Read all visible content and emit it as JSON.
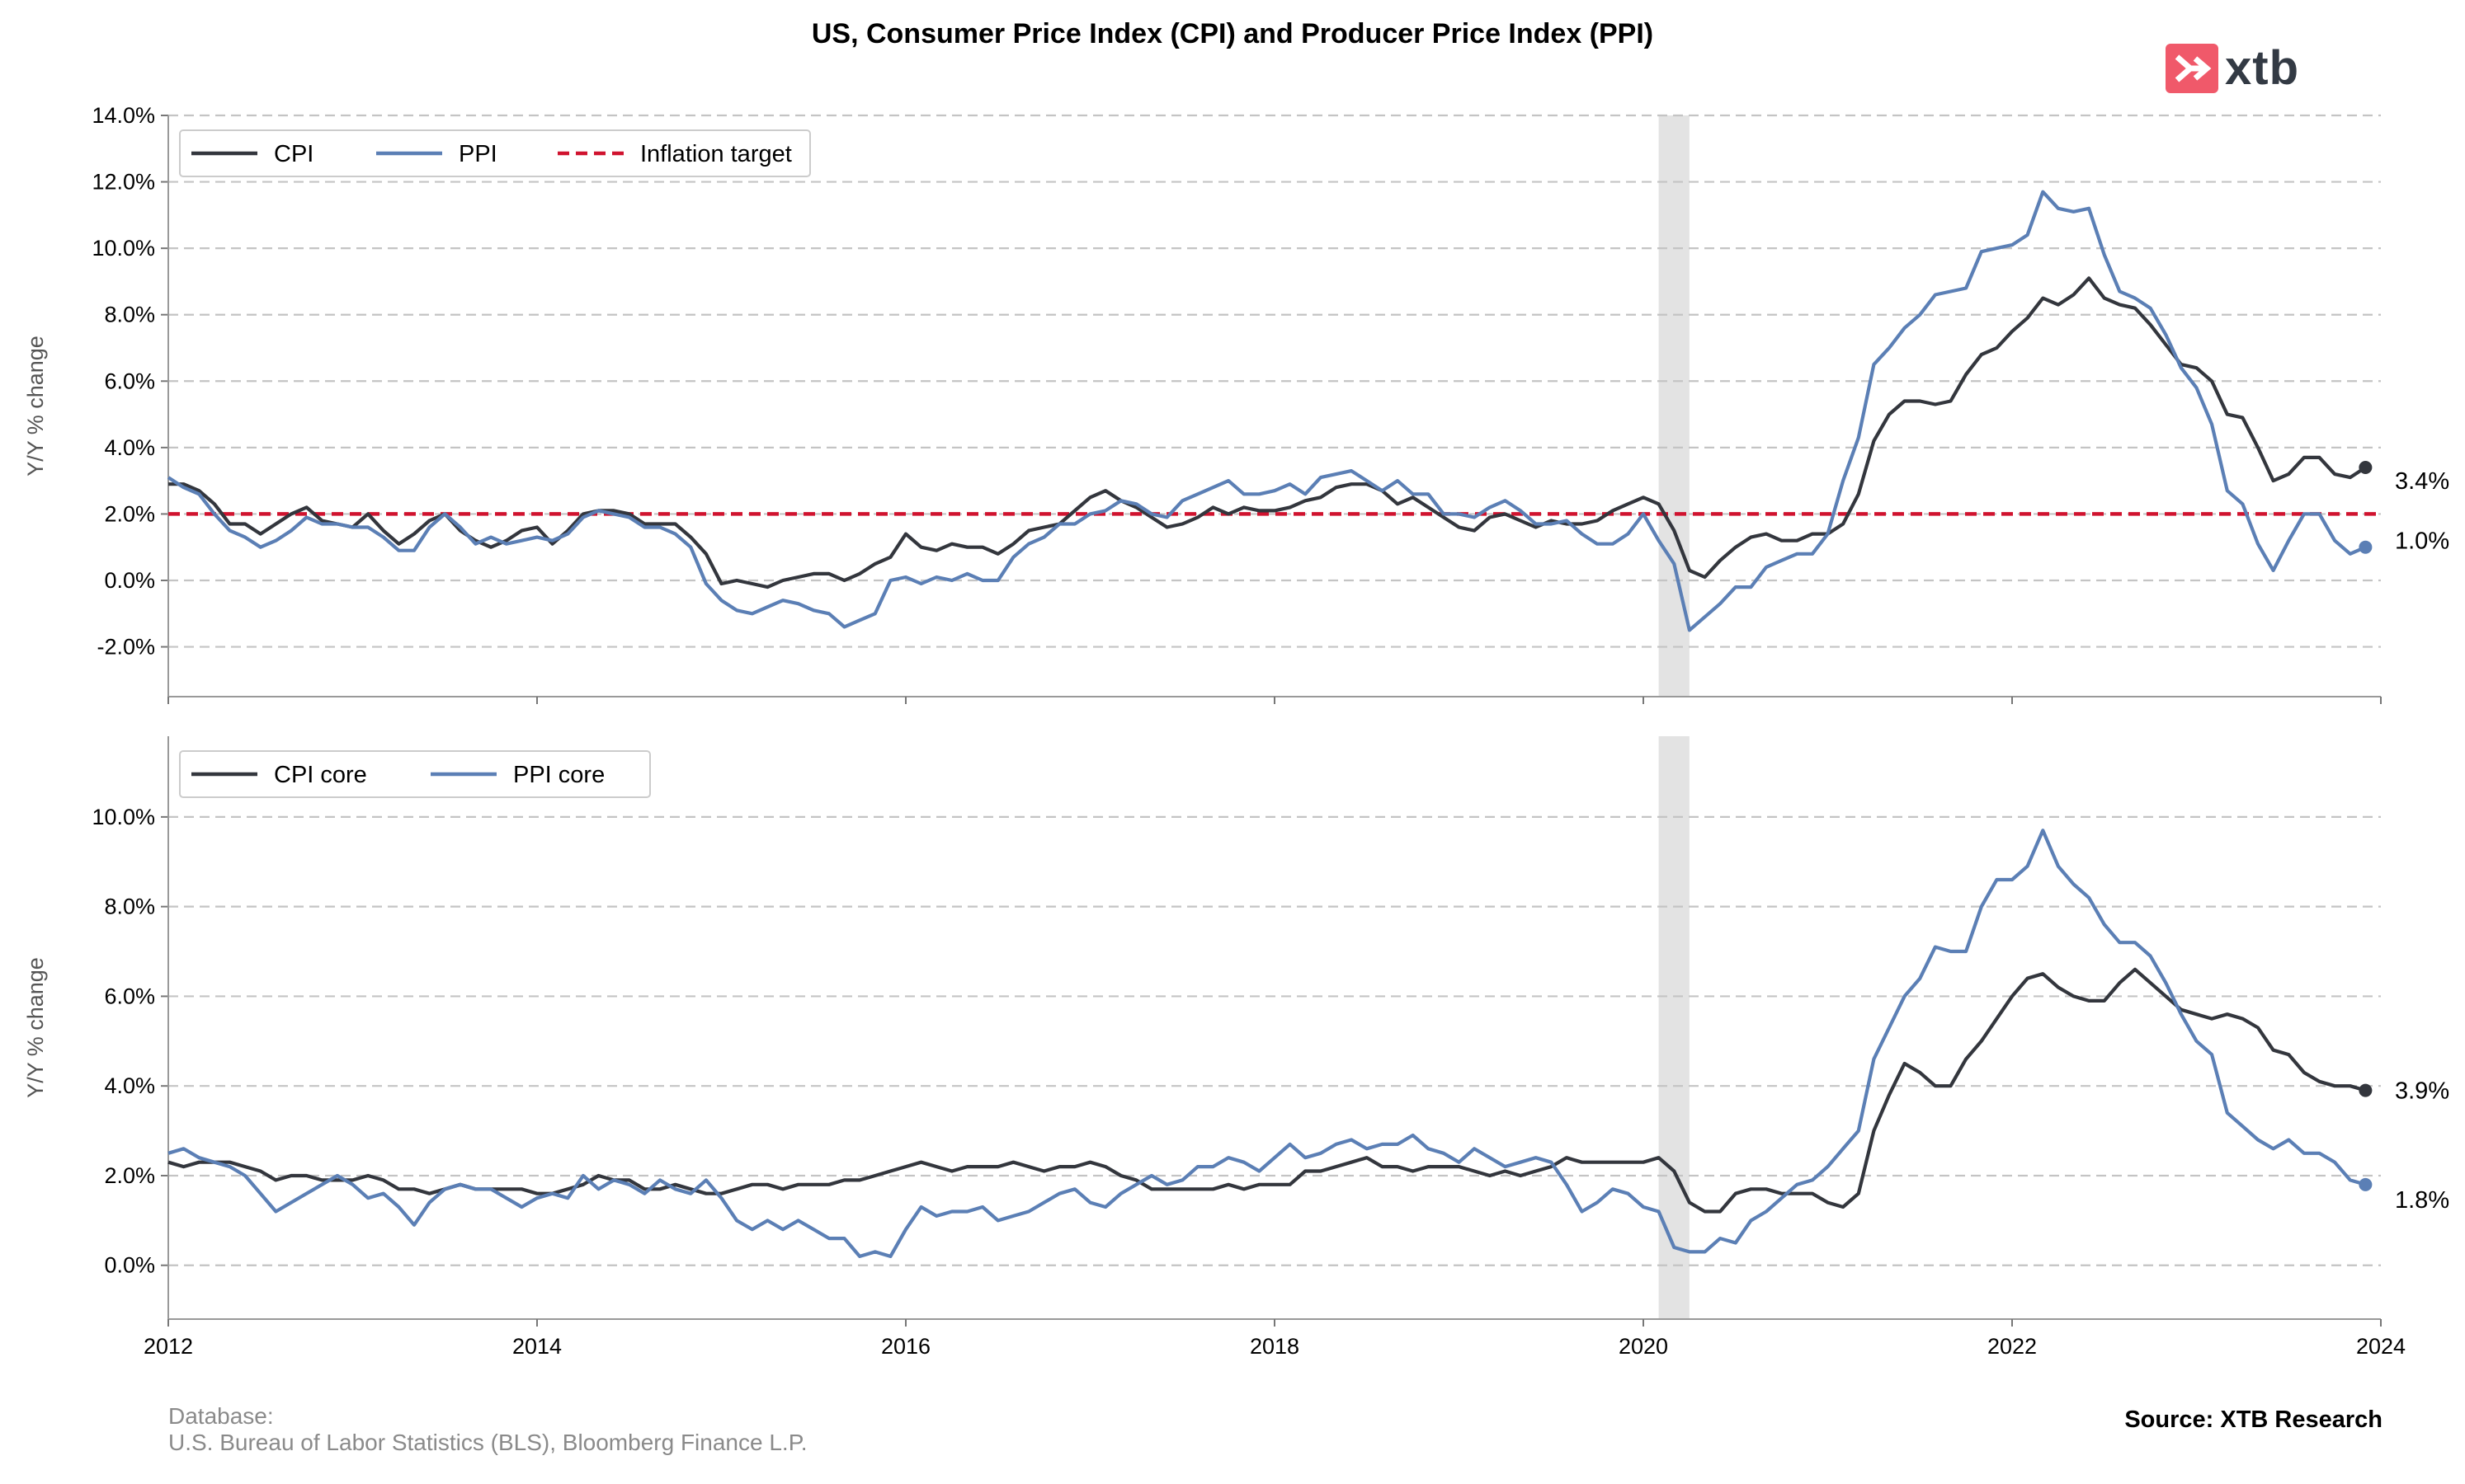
{
  "page": {
    "title": "US, Consumer Price Index (CPI) and Producer Price Index (PPI)",
    "logo_text": "xtb",
    "database_label": "Database:",
    "database_sources": "U.S. Bureau of Labor Statistics (BLS), Bloomberg Finance L.P.",
    "source": "Source: XTB Research"
  },
  "colors": {
    "cpi": "#33363d",
    "ppi": "#5b7fb5",
    "target": "#d0132f",
    "recession_shade": "#e3e3e3",
    "grid": "#c4c4c4",
    "logo": "#f0596a"
  },
  "chart_data": [
    {
      "type": "line",
      "title": "",
      "xlabel": "",
      "ylabel": "Y/Y % change",
      "x_ticks": [
        "2012",
        "2014",
        "2016",
        "2018",
        "2020",
        "2022",
        "2024"
      ],
      "y_ticks": [
        "-2.0%",
        "0.0%",
        "2.0%",
        "4.0%",
        "6.0%",
        "8.0%",
        "10.0%",
        "12.0%",
        "14.0%"
      ],
      "xlim": [
        "2012-01",
        "2024-01"
      ],
      "ylim": [
        -3.5,
        14.0
      ],
      "grid": "horizontal dashed",
      "legend": "top-left",
      "shaded_period": [
        "2020-02",
        "2020-04"
      ],
      "reference_line": {
        "name": "Inflation target",
        "value": 2.0
      },
      "start": "2012-01",
      "frequency": "monthly",
      "series": [
        {
          "name": "CPI",
          "end_label": "3.4%",
          "values": [
            2.9,
            2.9,
            2.7,
            2.3,
            1.7,
            1.7,
            1.4,
            1.7,
            2.0,
            2.2,
            1.8,
            1.7,
            1.6,
            2.0,
            1.5,
            1.1,
            1.4,
            1.8,
            2.0,
            1.5,
            1.2,
            1.0,
            1.2,
            1.5,
            1.6,
            1.1,
            1.5,
            2.0,
            2.1,
            2.1,
            2.0,
            1.7,
            1.7,
            1.7,
            1.3,
            0.8,
            -0.1,
            0.0,
            -0.1,
            -0.2,
            0.0,
            0.1,
            0.2,
            0.2,
            0.0,
            0.2,
            0.5,
            0.7,
            1.4,
            1.0,
            0.9,
            1.1,
            1.0,
            1.0,
            0.8,
            1.1,
            1.5,
            1.6,
            1.7,
            2.1,
            2.5,
            2.7,
            2.4,
            2.2,
            1.9,
            1.6,
            1.7,
            1.9,
            2.2,
            2.0,
            2.2,
            2.1,
            2.1,
            2.2,
            2.4,
            2.5,
            2.8,
            2.9,
            2.9,
            2.7,
            2.3,
            2.5,
            2.2,
            1.9,
            1.6,
            1.5,
            1.9,
            2.0,
            1.8,
            1.6,
            1.8,
            1.7,
            1.7,
            1.8,
            2.1,
            2.3,
            2.5,
            2.3,
            1.5,
            0.3,
            0.1,
            0.6,
            1.0,
            1.3,
            1.4,
            1.2,
            1.2,
            1.4,
            1.4,
            1.7,
            2.6,
            4.2,
            5.0,
            5.4,
            5.4,
            5.3,
            5.4,
            6.2,
            6.8,
            7.0,
            7.5,
            7.9,
            8.5,
            8.3,
            8.6,
            9.1,
            8.5,
            8.3,
            8.2,
            7.7,
            7.1,
            6.5,
            6.4,
            6.0,
            5.0,
            4.9,
            4.0,
            3.0,
            3.2,
            3.7,
            3.7,
            3.2,
            3.1,
            3.4
          ]
        },
        {
          "name": "PPI",
          "end_label": "1.0%",
          "values": [
            3.1,
            2.8,
            2.6,
            2.0,
            1.5,
            1.3,
            1.0,
            1.2,
            1.5,
            1.9,
            1.7,
            1.7,
            1.6,
            1.6,
            1.3,
            0.9,
            0.9,
            1.6,
            2.0,
            1.6,
            1.1,
            1.3,
            1.1,
            1.2,
            1.3,
            1.2,
            1.4,
            1.9,
            2.1,
            2.0,
            1.9,
            1.6,
            1.6,
            1.4,
            1.0,
            -0.1,
            -0.6,
            -0.9,
            -1.0,
            -0.8,
            -0.6,
            -0.7,
            -0.9,
            -1.0,
            -1.4,
            -1.2,
            -1.0,
            0.0,
            0.1,
            -0.1,
            0.1,
            0.0,
            0.2,
            0.0,
            0.0,
            0.7,
            1.1,
            1.3,
            1.7,
            1.7,
            2.0,
            2.1,
            2.4,
            2.3,
            2.0,
            1.9,
            2.4,
            2.6,
            2.8,
            3.0,
            2.6,
            2.6,
            2.7,
            2.9,
            2.6,
            3.1,
            3.2,
            3.3,
            3.0,
            2.7,
            3.0,
            2.6,
            2.6,
            2.0,
            2.0,
            1.9,
            2.2,
            2.4,
            2.1,
            1.7,
            1.7,
            1.8,
            1.4,
            1.1,
            1.1,
            1.4,
            2.0,
            1.2,
            0.5,
            -1.5,
            -1.1,
            -0.7,
            -0.2,
            -0.2,
            0.4,
            0.6,
            0.8,
            0.8,
            1.4,
            3.0,
            4.3,
            6.5,
            7.0,
            7.6,
            8.0,
            8.6,
            8.7,
            8.8,
            9.9,
            10.0,
            10.1,
            10.4,
            11.7,
            11.2,
            11.1,
            11.2,
            9.8,
            8.7,
            8.5,
            8.2,
            7.4,
            6.4,
            5.8,
            4.7,
            2.7,
            2.3,
            1.1,
            0.3,
            1.2,
            2.0,
            2.0,
            1.2,
            0.8,
            1.0
          ]
        }
      ]
    },
    {
      "type": "line",
      "title": "",
      "xlabel": "",
      "ylabel": "Y/Y % change",
      "x_ticks": [
        "2012",
        "2014",
        "2016",
        "2018",
        "2020",
        "2022",
        "2024"
      ],
      "y_ticks": [
        "0.0%",
        "2.0%",
        "4.0%",
        "6.0%",
        "8.0%",
        "10.0%"
      ],
      "xlim": [
        "2012-01",
        "2024-01"
      ],
      "ylim": [
        -1.2,
        11.8
      ],
      "grid": "horizontal dashed",
      "legend": "top-left",
      "shaded_period": [
        "2020-02",
        "2020-04"
      ],
      "start": "2012-01",
      "frequency": "monthly",
      "series": [
        {
          "name": "CPI core",
          "end_label": "3.9%",
          "values": [
            2.3,
            2.2,
            2.3,
            2.3,
            2.3,
            2.2,
            2.1,
            1.9,
            2.0,
            2.0,
            1.9,
            1.9,
            1.9,
            2.0,
            1.9,
            1.7,
            1.7,
            1.6,
            1.7,
            1.8,
            1.7,
            1.7,
            1.7,
            1.7,
            1.6,
            1.6,
            1.7,
            1.8,
            2.0,
            1.9,
            1.9,
            1.7,
            1.7,
            1.8,
            1.7,
            1.6,
            1.6,
            1.7,
            1.8,
            1.8,
            1.7,
            1.8,
            1.8,
            1.8,
            1.9,
            1.9,
            2.0,
            2.1,
            2.2,
            2.3,
            2.2,
            2.1,
            2.2,
            2.2,
            2.2,
            2.3,
            2.2,
            2.1,
            2.2,
            2.2,
            2.3,
            2.2,
            2.0,
            1.9,
            1.7,
            1.7,
            1.7,
            1.7,
            1.7,
            1.8,
            1.7,
            1.8,
            1.8,
            1.8,
            2.1,
            2.1,
            2.2,
            2.3,
            2.4,
            2.2,
            2.2,
            2.1,
            2.2,
            2.2,
            2.2,
            2.1,
            2.0,
            2.1,
            2.0,
            2.1,
            2.2,
            2.4,
            2.3,
            2.3,
            2.3,
            2.3,
            2.3,
            2.4,
            2.1,
            1.4,
            1.2,
            1.2,
            1.6,
            1.7,
            1.7,
            1.6,
            1.6,
            1.6,
            1.4,
            1.3,
            1.6,
            3.0,
            3.8,
            4.5,
            4.3,
            4.0,
            4.0,
            4.6,
            5.0,
            5.5,
            6.0,
            6.4,
            6.5,
            6.2,
            6.0,
            5.9,
            5.9,
            6.3,
            6.6,
            6.3,
            6.0,
            5.7,
            5.6,
            5.5,
            5.6,
            5.5,
            5.3,
            4.8,
            4.7,
            4.3,
            4.1,
            4.0,
            4.0,
            3.9
          ]
        },
        {
          "name": "PPI core",
          "end_label": "1.8%",
          "values": [
            2.5,
            2.6,
            2.4,
            2.3,
            2.2,
            2.0,
            1.6,
            1.2,
            1.4,
            1.6,
            1.8,
            2.0,
            1.8,
            1.5,
            1.6,
            1.3,
            0.9,
            1.4,
            1.7,
            1.8,
            1.7,
            1.7,
            1.5,
            1.3,
            1.5,
            1.6,
            1.5,
            2.0,
            1.7,
            1.9,
            1.8,
            1.6,
            1.9,
            1.7,
            1.6,
            1.9,
            1.5,
            1.0,
            0.8,
            1.0,
            0.8,
            1.0,
            0.8,
            0.6,
            0.6,
            0.2,
            0.3,
            0.2,
            0.8,
            1.3,
            1.1,
            1.2,
            1.2,
            1.3,
            1.0,
            1.1,
            1.2,
            1.4,
            1.6,
            1.7,
            1.4,
            1.3,
            1.6,
            1.8,
            2.0,
            1.8,
            1.9,
            2.2,
            2.2,
            2.4,
            2.3,
            2.1,
            2.4,
            2.7,
            2.4,
            2.5,
            2.7,
            2.8,
            2.6,
            2.7,
            2.7,
            2.9,
            2.6,
            2.5,
            2.3,
            2.6,
            2.4,
            2.2,
            2.3,
            2.4,
            2.3,
            1.8,
            1.2,
            1.4,
            1.7,
            1.6,
            1.3,
            1.2,
            0.4,
            0.3,
            0.3,
            0.6,
            0.5,
            1.0,
            1.2,
            1.5,
            1.8,
            1.9,
            2.2,
            2.6,
            3.0,
            4.6,
            5.3,
            6.0,
            6.4,
            7.1,
            7.0,
            7.0,
            8.0,
            8.6,
            8.6,
            8.9,
            9.7,
            8.9,
            8.5,
            8.2,
            7.6,
            7.2,
            7.2,
            6.9,
            6.3,
            5.6,
            5.0,
            4.7,
            3.4,
            3.1,
            2.8,
            2.6,
            2.8,
            2.5,
            2.5,
            2.3,
            1.9,
            1.8
          ]
        }
      ]
    }
  ]
}
